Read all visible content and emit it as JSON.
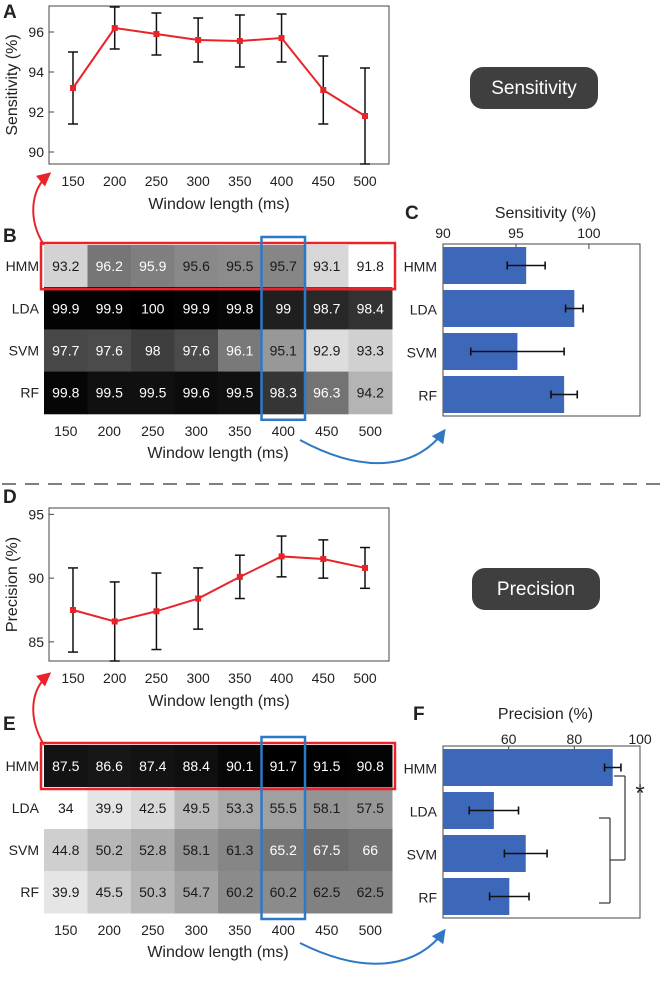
{
  "figure": {
    "separator": "dashed",
    "accent_red": "#e8242a",
    "accent_blue": "#2f78c4",
    "bar_color": "#3d67b8",
    "line_color": "#e8242a"
  },
  "labels": {
    "sensitivity_pill": "Sensitivity",
    "precision_pill": "Precision",
    "significance": "*"
  },
  "chart_data": [
    {
      "id": "A",
      "panel": "A",
      "type": "line",
      "x": [
        150,
        200,
        250,
        300,
        350,
        400,
        450,
        500
      ],
      "y": [
        93.2,
        96.2,
        95.9,
        95.6,
        95.55,
        95.7,
        93.1,
        91.8
      ],
      "err": [
        1.8,
        1.05,
        1.05,
        1.1,
        1.3,
        1.2,
        1.7,
        2.4
      ],
      "ylim": [
        89.4,
        97.3
      ],
      "yticks": [
        90,
        92,
        94,
        96
      ],
      "ylabel": "Sensitivity (%)",
      "xlabel": "Window length (ms)"
    },
    {
      "id": "B",
      "panel": "B",
      "type": "heatmap",
      "rows": [
        "HMM",
        "LDA",
        "SVM",
        "RF"
      ],
      "cols": [
        "150",
        "200",
        "250",
        "300",
        "350",
        "400",
        "450",
        "500"
      ],
      "values": [
        [
          "93.2",
          "96.2",
          "95.9",
          "95.6",
          "95.5",
          "95.7",
          "93.1",
          "91.8"
        ],
        [
          "99.9",
          "99.9",
          "100",
          "99.9",
          "99.8",
          "99",
          "98.7",
          "98.4"
        ],
        [
          "97.7",
          "97.6",
          "98",
          "97.6",
          "96.1",
          "95.1",
          "92.9",
          "93.3"
        ],
        [
          "99.8",
          "99.5",
          "99.5",
          "99.6",
          "99.5",
          "98.3",
          "96.3",
          "94.2"
        ]
      ],
      "vmin": 91.8,
      "vmax": 100,
      "xlabel": "Window length (ms)",
      "highlight_row": "HMM",
      "highlight_col": "400"
    },
    {
      "id": "C",
      "panel": "C",
      "type": "bar",
      "orientation": "horizontal",
      "categories": [
        "HMM",
        "LDA",
        "SVM",
        "RF"
      ],
      "values": [
        95.7,
        99,
        95.1,
        98.3
      ],
      "err": [
        1.3,
        0.6,
        3.2,
        0.9
      ],
      "xlim": [
        90,
        103.5
      ],
      "xticks": [
        90,
        95,
        100
      ],
      "xlabel": "Sensitivity (%)"
    },
    {
      "id": "D",
      "panel": "D",
      "type": "line",
      "x": [
        150,
        200,
        250,
        300,
        350,
        400,
        450,
        500
      ],
      "y": [
        87.5,
        86.6,
        87.4,
        88.4,
        90.1,
        91.7,
        91.5,
        90.8
      ],
      "err": [
        3.3,
        3.1,
        3.0,
        2.4,
        1.7,
        1.6,
        1.5,
        1.6
      ],
      "ylim": [
        83.5,
        95.5
      ],
      "yticks": [
        85,
        90,
        95
      ],
      "ylabel": "Precision (%)",
      "xlabel": "Window length (ms)"
    },
    {
      "id": "E",
      "panel": "E",
      "type": "heatmap",
      "rows": [
        "HMM",
        "LDA",
        "SVM",
        "RF"
      ],
      "cols": [
        "150",
        "200",
        "250",
        "300",
        "350",
        "400",
        "450",
        "500"
      ],
      "values": [
        [
          "87.5",
          "86.6",
          "87.4",
          "88.4",
          "90.1",
          "91.7",
          "91.5",
          "90.8"
        ],
        [
          "34",
          "39.9",
          "42.5",
          "49.5",
          "53.3",
          "55.5",
          "58.1",
          "57.5"
        ],
        [
          "44.8",
          "50.2",
          "52.8",
          "58.1",
          "61.3",
          "65.2",
          "67.5",
          "66"
        ],
        [
          "39.9",
          "45.5",
          "50.3",
          "54.7",
          "60.2",
          "60.2",
          "62.5",
          "62.5"
        ]
      ],
      "vmin": 34,
      "vmax": 91.7,
      "xlabel": "Window length (ms)",
      "highlight_row": "HMM",
      "highlight_col": "400"
    },
    {
      "id": "F",
      "panel": "F",
      "type": "bar",
      "orientation": "horizontal",
      "categories": [
        "HMM",
        "LDA",
        "SVM",
        "RF"
      ],
      "values": [
        91.7,
        55.5,
        65.2,
        60.2
      ],
      "err": [
        2.5,
        7.5,
        6.5,
        6.0
      ],
      "xlim": [
        40,
        100
      ],
      "xticks": [
        60,
        80,
        100
      ],
      "xlabel": "Precision (%)"
    }
  ]
}
